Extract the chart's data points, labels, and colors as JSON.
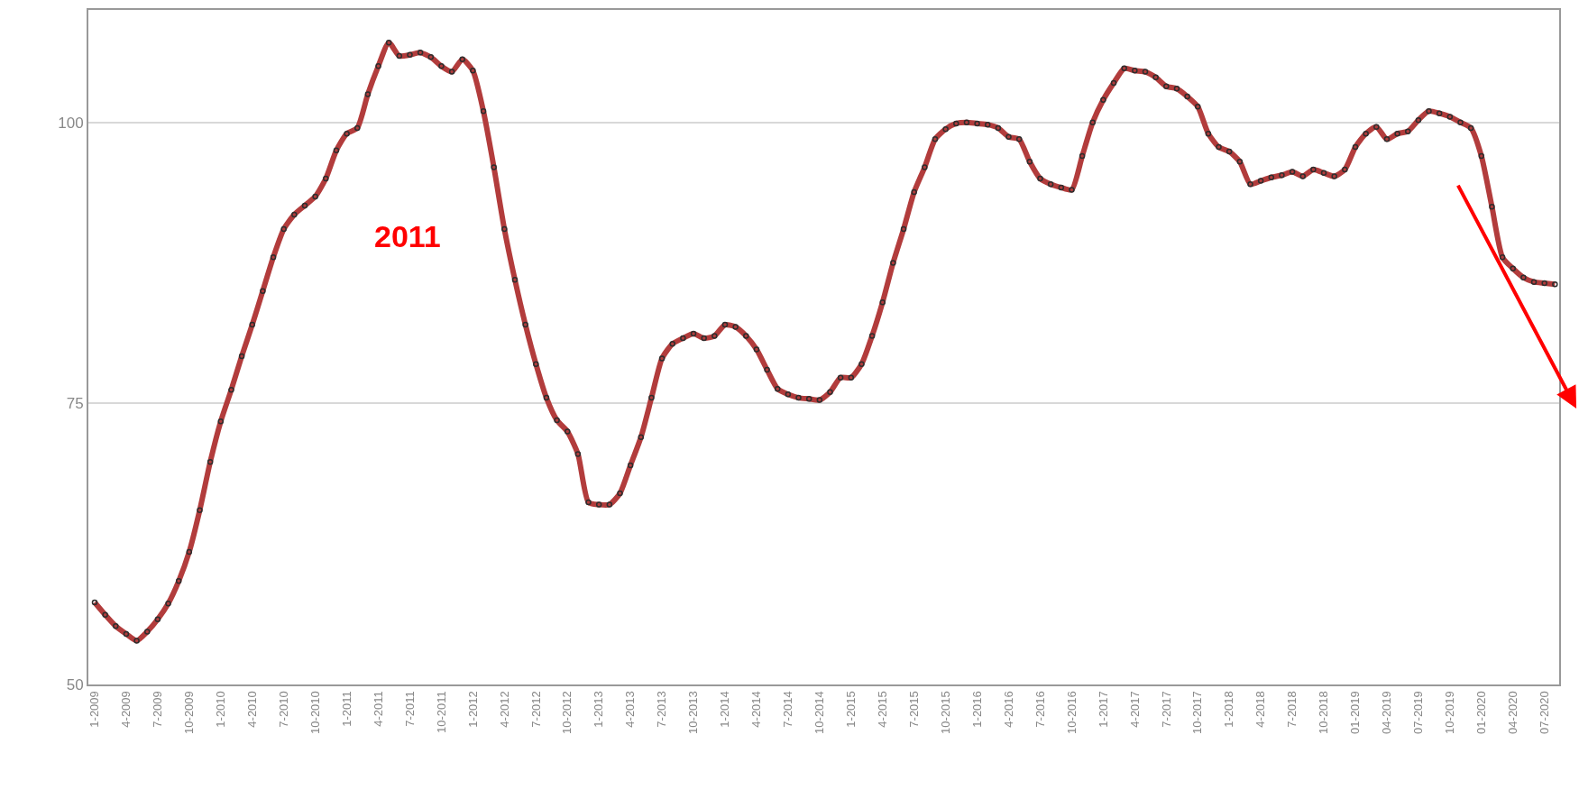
{
  "chart_data": {
    "type": "line",
    "categories": [
      "1-2009",
      null,
      null,
      "4-2009",
      null,
      null,
      "7-2009",
      null,
      null,
      "10-2009",
      null,
      null,
      "1-2010",
      null,
      null,
      "4-2010",
      null,
      null,
      "7-2010",
      null,
      null,
      "10-2010",
      null,
      null,
      "1-2011",
      null,
      null,
      "4-2011",
      null,
      null,
      "7-2011",
      null,
      null,
      "10-2011",
      null,
      null,
      "1-2012",
      null,
      null,
      "4-2012",
      null,
      null,
      "7-2012",
      null,
      null,
      "10-2012",
      null,
      null,
      "1-2013",
      null,
      null,
      "4-2013",
      null,
      null,
      "7-2013",
      null,
      null,
      "10-2013",
      null,
      null,
      "1-2014",
      null,
      null,
      "4-2014",
      null,
      null,
      "7-2014",
      null,
      null,
      "10-2014",
      null,
      null,
      "1-2015",
      null,
      null,
      "4-2015",
      null,
      null,
      "7-2015",
      null,
      null,
      "10-2015",
      null,
      null,
      "1-2016",
      null,
      null,
      "4-2016",
      null,
      null,
      "7-2016",
      null,
      null,
      "10-2016",
      null,
      null,
      "1-2017",
      null,
      null,
      "4-2017",
      null,
      null,
      "7-2017",
      null,
      null,
      "10-2017",
      null,
      null,
      "1-2018",
      null,
      null,
      "4-2018",
      null,
      null,
      "7-2018",
      null,
      null,
      "10-2018",
      null,
      null,
      "01-2019",
      null,
      null,
      "04-2019",
      null,
      null,
      "07-2019",
      null,
      null,
      "10-2019",
      null,
      null,
      "01-2020",
      null,
      null,
      "04-2020",
      null,
      null,
      "07-2020",
      null
    ],
    "series": [
      {
        "color": "#b23c3c",
        "values": [
          57.3,
          56.2,
          55.2,
          54.5,
          53.9,
          54.7,
          55.8,
          57.2,
          59.2,
          61.8,
          65.5,
          69.8,
          73.4,
          76.2,
          79.2,
          82.0,
          85.0,
          88.0,
          90.5,
          91.8,
          92.6,
          93.4,
          95.0,
          97.5,
          99.0,
          99.5,
          102.5,
          105.0,
          107.1,
          105.9,
          106.0,
          106.2,
          105.8,
          105.0,
          104.5,
          105.6,
          104.6,
          101.0,
          96.0,
          90.5,
          86.0,
          82.0,
          78.5,
          75.5,
          73.5,
          72.5,
          70.5,
          66.2,
          66.0,
          66.0,
          67.0,
          69.5,
          72.0,
          75.5,
          79.0,
          80.3,
          80.8,
          81.2,
          80.8,
          81.0,
          82.0,
          81.8,
          81.0,
          79.8,
          78.0,
          76.3,
          75.8,
          75.5,
          75.4,
          75.3,
          76.0,
          77.3,
          77.3,
          78.5,
          81.0,
          84.0,
          87.5,
          90.5,
          93.8,
          96.0,
          98.5,
          99.4,
          99.9,
          100.0,
          99.9,
          99.8,
          99.5,
          98.7,
          98.5,
          96.5,
          95.0,
          94.5,
          94.2,
          94.0,
          97.0,
          100.0,
          102.0,
          103.5,
          104.8,
          104.6,
          104.5,
          104.0,
          103.2,
          103.0,
          102.3,
          101.4,
          99.0,
          97.8,
          97.4,
          96.5,
          94.5,
          94.8,
          95.1,
          95.3,
          95.6,
          95.2,
          95.8,
          95.5,
          95.2,
          95.8,
          97.8,
          99.0,
          99.6,
          98.5,
          99.0,
          99.2,
          100.2,
          101.0,
          100.8,
          100.5,
          100.0,
          99.5,
          97.0,
          92.5,
          88.0,
          87.0,
          86.2,
          85.8,
          85.7,
          85.6
        ]
      }
    ],
    "ylim": [
      50,
      110
    ],
    "yticks": [
      50,
      75,
      100
    ],
    "grid": "y",
    "marker": "circle",
    "line_style": "solid",
    "annotations": [
      "2011"
    ]
  }
}
